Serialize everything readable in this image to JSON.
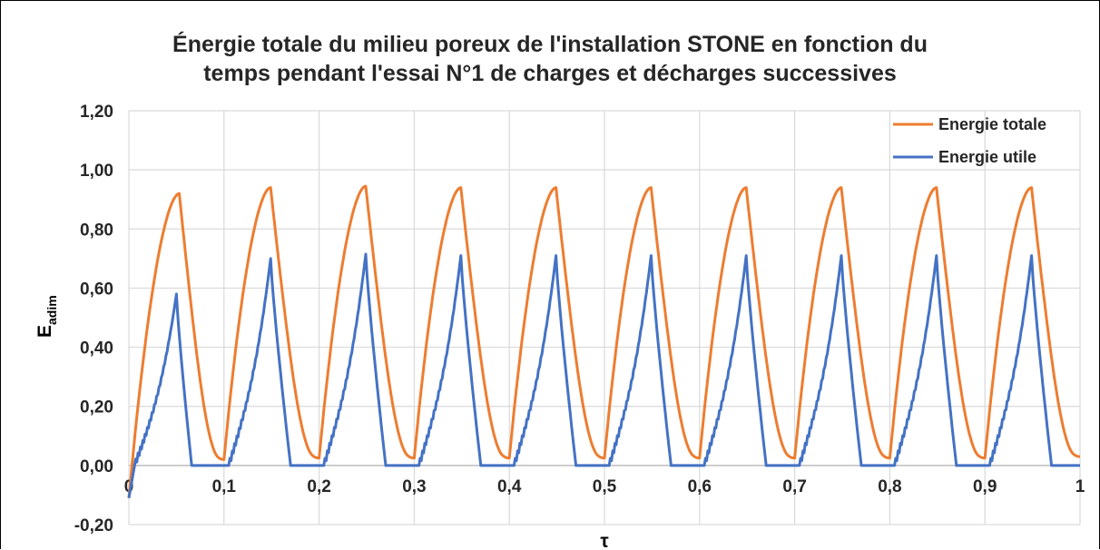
{
  "chart_data": {
    "type": "line",
    "title_line1": "Énergie totale du milieu poreux de l'installation STONE en fonction du",
    "title_line2": "temps pendant l'essai N°1 de charges et décharges successives",
    "xlabel": "τ",
    "ylabel_main": "E",
    "ylabel_sub": "adim",
    "xlim": [
      0,
      1
    ],
    "ylim": [
      -0.2,
      1.2
    ],
    "x_ticks": [
      0,
      0.1,
      0.2,
      0.3,
      0.4,
      0.5,
      0.6,
      0.7,
      0.8,
      0.9,
      1
    ],
    "x_tick_labels": [
      "0",
      "0,1",
      "0,2",
      "0,3",
      "0,4",
      "0,5",
      "0,6",
      "0,7",
      "0,8",
      "0,9",
      "1"
    ],
    "y_ticks": [
      -0.2,
      0,
      0.2,
      0.4,
      0.6,
      0.8,
      1.0,
      1.2
    ],
    "y_tick_labels": [
      "-0,20",
      "0,00",
      "0,20",
      "0,40",
      "0,60",
      "0,80",
      "1,00",
      "1,20"
    ],
    "grid": true,
    "legend_position": "top-right",
    "cycles": 10,
    "series": [
      {
        "name": "Energie totale",
        "color": "#ED7D31",
        "start_value": -0.11,
        "cycle_peak_x": [
          0.053,
          0.149,
          0.249,
          0.349,
          0.449,
          0.549,
          0.649,
          0.749,
          0.849,
          0.949
        ],
        "cycle_peak_y": [
          0.92,
          0.94,
          0.945,
          0.94,
          0.94,
          0.94,
          0.94,
          0.94,
          0.94,
          0.94
        ],
        "cycle_min_x": [
          0.0,
          0.1,
          0.2,
          0.3,
          0.4,
          0.5,
          0.6,
          0.7,
          0.8,
          0.9,
          1.0
        ],
        "cycle_min_y": [
          -0.11,
          0.02,
          0.025,
          0.025,
          0.025,
          0.025,
          0.025,
          0.025,
          0.025,
          0.025,
          0.03
        ]
      },
      {
        "name": "Energie utile",
        "color": "#4472C4",
        "start_value": -0.11,
        "cycle_start_x": [
          0.006,
          0.105,
          0.205,
          0.305,
          0.405,
          0.505,
          0.605,
          0.705,
          0.805,
          0.905
        ],
        "cycle_peak_x": [
          0.05,
          0.149,
          0.249,
          0.349,
          0.449,
          0.549,
          0.649,
          0.749,
          0.849,
          0.949
        ],
        "cycle_peak_y": [
          0.58,
          0.7,
          0.715,
          0.71,
          0.71,
          0.71,
          0.71,
          0.71,
          0.71,
          0.71
        ],
        "cycle_end_x": [
          0.066,
          0.17,
          0.27,
          0.37,
          0.47,
          0.57,
          0.67,
          0.77,
          0.87,
          0.97
        ]
      }
    ]
  }
}
